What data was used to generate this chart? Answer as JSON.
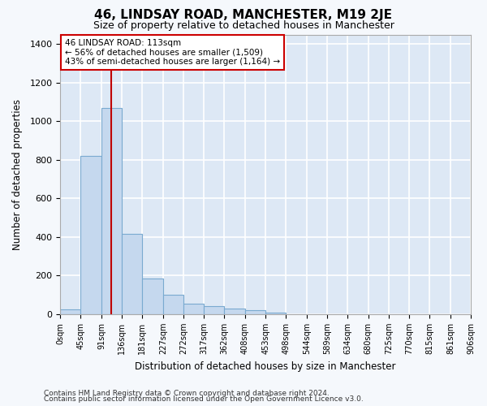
{
  "title": "46, LINDSAY ROAD, MANCHESTER, M19 2JE",
  "subtitle": "Size of property relative to detached houses in Manchester",
  "xlabel": "Distribution of detached houses by size in Manchester",
  "ylabel": "Number of detached properties",
  "bar_color": "#c5d8ee",
  "bar_edge_color": "#7aaad0",
  "background_color": "#dde8f5",
  "grid_color": "#ffffff",
  "fig_bg_color": "#f5f8fc",
  "property_line_x": 113,
  "property_line_color": "#c00000",
  "annotation_text": "46 LINDSAY ROAD: 113sqm\n← 56% of detached houses are smaller (1,509)\n43% of semi-detached houses are larger (1,164) →",
  "annotation_box_color": "#cc0000",
  "ylim": [
    0,
    1450
  ],
  "bin_edges": [
    0,
    45,
    91,
    136,
    181,
    227,
    272,
    317,
    362,
    408,
    453,
    498,
    544,
    589,
    634,
    680,
    725,
    770,
    815,
    861,
    906
  ],
  "bar_heights": [
    25,
    820,
    1070,
    415,
    185,
    100,
    55,
    40,
    30,
    20,
    10,
    0,
    0,
    0,
    0,
    0,
    0,
    0,
    0,
    0
  ],
  "footer_line1": "Contains HM Land Registry data © Crown copyright and database right 2024.",
  "footer_line2": "Contains public sector information licensed under the Open Government Licence v3.0.",
  "xtick_labels": [
    "0sqm",
    "45sqm",
    "91sqm",
    "136sqm",
    "181sqm",
    "227sqm",
    "272sqm",
    "317sqm",
    "362sqm",
    "408sqm",
    "453sqm",
    "498sqm",
    "544sqm",
    "589sqm",
    "634sqm",
    "680sqm",
    "725sqm",
    "770sqm",
    "815sqm",
    "861sqm",
    "906sqm"
  ],
  "ytick_values": [
    0,
    200,
    400,
    600,
    800,
    1000,
    1200,
    1400
  ],
  "title_fontsize": 11,
  "subtitle_fontsize": 9,
  "axis_label_fontsize": 8.5,
  "tick_fontsize": 8,
  "xtick_fontsize": 7,
  "footer_fontsize": 6.5
}
